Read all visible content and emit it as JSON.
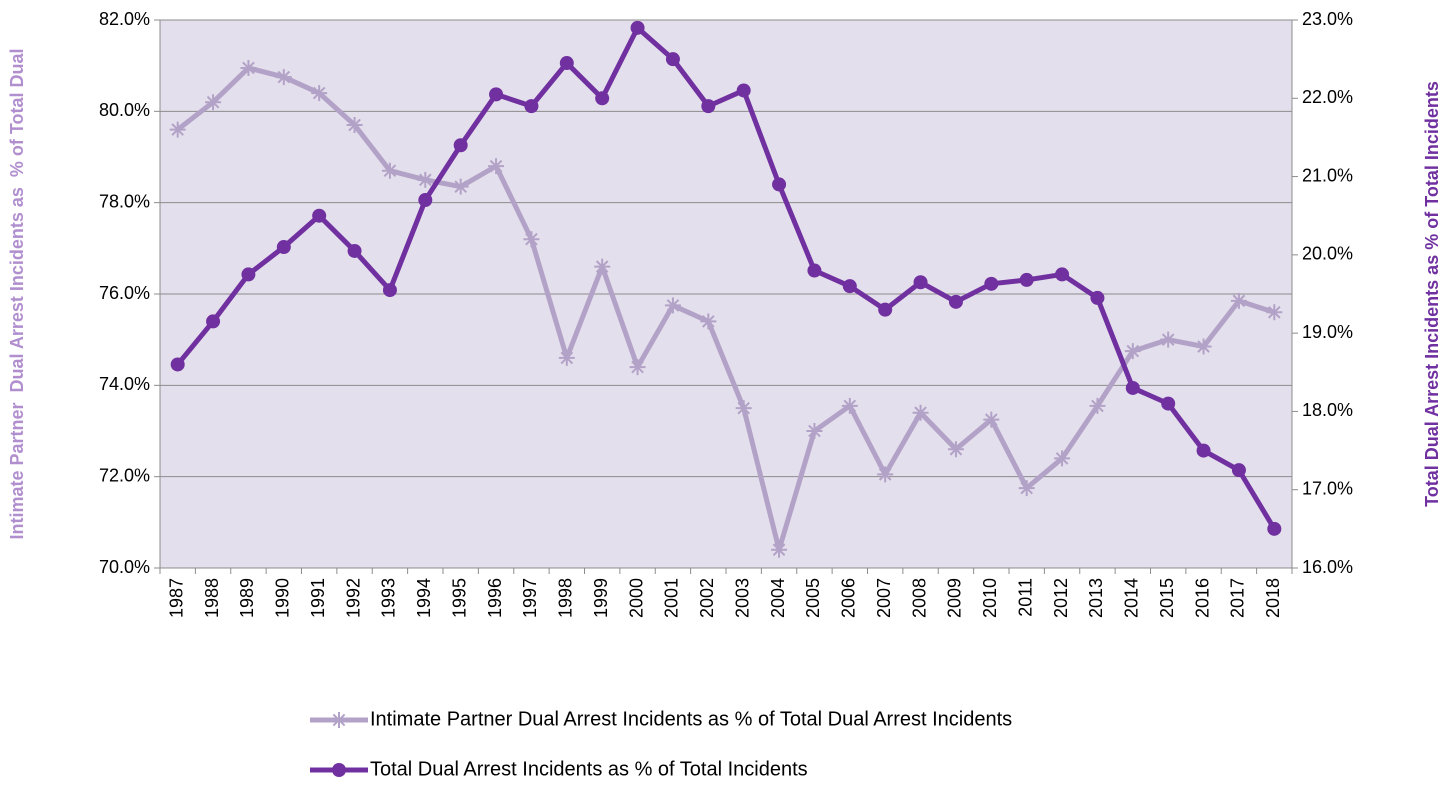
{
  "chart_data": {
    "type": "line",
    "categories": [
      "1987",
      "1988",
      "1989",
      "1990",
      "1991",
      "1992",
      "1993",
      "1994",
      "1995",
      "1996",
      "1997",
      "1998",
      "1999",
      "2000",
      "2001",
      "2002",
      "2003",
      "2004",
      "2005",
      "2006",
      "2007",
      "2008",
      "2009",
      "2010",
      "2011",
      "2012",
      "2013",
      "2014",
      "2015",
      "2016",
      "2017",
      "2018"
    ],
    "ylabel": "Intimate Partner  Dual Arrest Incidents as  % of Total Dual",
    "y2label": "Total Dual Arrest Incidents as % of Total Incidents",
    "ylim": [
      70,
      82
    ],
    "yticks": [
      {
        "value": 70,
        "label": "70.0%"
      },
      {
        "value": 72,
        "label": "72.0%"
      },
      {
        "value": 74,
        "label": "74.0%"
      },
      {
        "value": 76,
        "label": "76.0%"
      },
      {
        "value": 78,
        "label": "78.0%"
      },
      {
        "value": 80,
        "label": "80.0%"
      },
      {
        "value": 82,
        "label": "82.0%"
      }
    ],
    "y2lim": [
      16,
      23
    ],
    "y2ticks": [
      {
        "value": 16,
        "label": "16.0%"
      },
      {
        "value": 17,
        "label": "17.0%"
      },
      {
        "value": 18,
        "label": "18.0%"
      },
      {
        "value": 19,
        "label": "19.0%"
      },
      {
        "value": 20,
        "label": "20.0%"
      },
      {
        "value": 21,
        "label": "21.0%"
      },
      {
        "value": 22,
        "label": "22.0%"
      },
      {
        "value": 23,
        "label": "23.0%"
      }
    ],
    "grid": true,
    "legend": "bottom",
    "series": [
      {
        "name": "Intimate Partner Dual Arrest Incidents as % of Total Dual Arrest Incidents",
        "color": "#b3a2c7",
        "marker": "star",
        "axis": "y",
        "values": [
          79.6,
          80.2,
          80.95,
          80.75,
          80.4,
          79.7,
          78.7,
          78.5,
          78.35,
          78.8,
          77.2,
          74.6,
          76.6,
          74.4,
          75.75,
          75.4,
          73.5,
          70.4,
          73.0,
          73.55,
          72.05,
          73.4,
          72.6,
          73.25,
          71.75,
          72.4,
          73.55,
          74.75,
          75.0,
          74.85,
          75.85,
          75.6
        ]
      },
      {
        "name": "Total Dual Arrest Incidents as % of Total Incidents",
        "color": "#7030a0",
        "marker": "circle",
        "axis": "y2",
        "values": [
          18.6,
          19.15,
          19.75,
          20.1,
          20.5,
          20.05,
          19.55,
          20.7,
          21.4,
          22.05,
          21.9,
          22.45,
          22.0,
          22.9,
          22.5,
          21.9,
          22.1,
          20.9,
          19.8,
          19.6,
          19.3,
          19.65,
          19.4,
          19.63,
          19.68,
          19.75,
          19.45,
          18.3,
          18.1,
          17.5,
          17.25,
          16.5
        ]
      }
    ]
  }
}
